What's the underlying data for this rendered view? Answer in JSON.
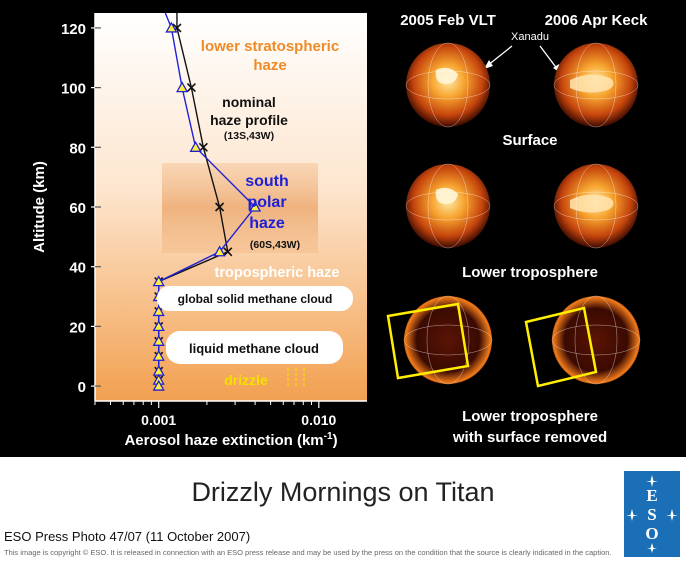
{
  "chart_data": {
    "type": "line",
    "xlabel": "Aerosol haze extinction (km",
    "xlabel_sup": "-1",
    "xlabel_close": ")",
    "ylabel": "Altitude (km)",
    "xscale": "log",
    "xlim": [
      0.0004,
      0.02
    ],
    "ylim": [
      -5,
      125
    ],
    "x_ticks": [
      {
        "v": 0.001,
        "label": "0.001"
      },
      {
        "v": 0.01,
        "label": "0.010"
      }
    ],
    "y_ticks": [
      0,
      20,
      40,
      60,
      80,
      100,
      120
    ],
    "grid": false,
    "series": [
      {
        "name": "nominal haze profile",
        "color": "#111111",
        "marker": "x",
        "points": [
          [
            0.0013,
            125
          ],
          [
            0.0013,
            120
          ],
          [
            0.0016,
            100
          ],
          [
            0.0019,
            80
          ],
          [
            0.0024,
            60
          ],
          [
            0.0027,
            45
          ],
          [
            0.001,
            35
          ],
          [
            0.001,
            30
          ],
          [
            0.001,
            25
          ],
          [
            0.001,
            20
          ],
          [
            0.001,
            15
          ],
          [
            0.001,
            10
          ],
          [
            0.001,
            5
          ],
          [
            0.001,
            2
          ],
          [
            0.001,
            0
          ]
        ]
      },
      {
        "name": "south polar haze",
        "color": "#1e22d6",
        "marker": "triangle",
        "points": [
          [
            0.0011,
            125
          ],
          [
            0.0012,
            120
          ],
          [
            0.0014,
            100
          ],
          [
            0.0017,
            80
          ],
          [
            0.004,
            60
          ],
          [
            0.0024,
            45
          ],
          [
            0.001,
            35
          ],
          [
            0.001,
            30
          ],
          [
            0.001,
            25
          ],
          [
            0.001,
            20
          ],
          [
            0.001,
            15
          ],
          [
            0.001,
            10
          ],
          [
            0.001,
            5
          ],
          [
            0.001,
            2
          ],
          [
            0.001,
            0
          ]
        ]
      }
    ],
    "annotations": {
      "lower_strat": [
        "lower stratospheric",
        "haze"
      ],
      "nominal": [
        "nominal",
        "haze profile"
      ],
      "nominal_coord": "(13S,43W)",
      "south_polar": [
        "south",
        "polar",
        "haze"
      ],
      "south_coord": "(60S,43W)",
      "tropo": "tropospheric haze",
      "solid_cloud": "global solid methane cloud",
      "liquid_cloud": "liquid methane cloud",
      "drizzle": "drizzle"
    }
  },
  "images": {
    "col1": "2005 Feb VLT",
    "col2": "2006 Apr Keck",
    "feature": "Xanadu",
    "row1": "Surface",
    "row2": "Lower troposphere",
    "row3": [
      "Lower troposphere",
      "with surface removed"
    ]
  },
  "footer": {
    "title": "Drizzly Mornings on Titan",
    "photo_ref": "ESO Press Photo 47/07 (11 October 2007)",
    "copyright": "This image is copyright © ESO. It is released in connection with an ESO press release and may be used by the press on the condition that the source is clearly indicated in the caption.",
    "logo_text": "ESO"
  },
  "colors": {
    "panel_bg": "#000000",
    "plot_top": "#ffffff",
    "plot_bottom": "#f2a050",
    "blue_series": "#1e22d6",
    "orange_text": "#f08a26",
    "yellow_box": "#ffee00",
    "logo_bg": "#1a6fb7"
  }
}
